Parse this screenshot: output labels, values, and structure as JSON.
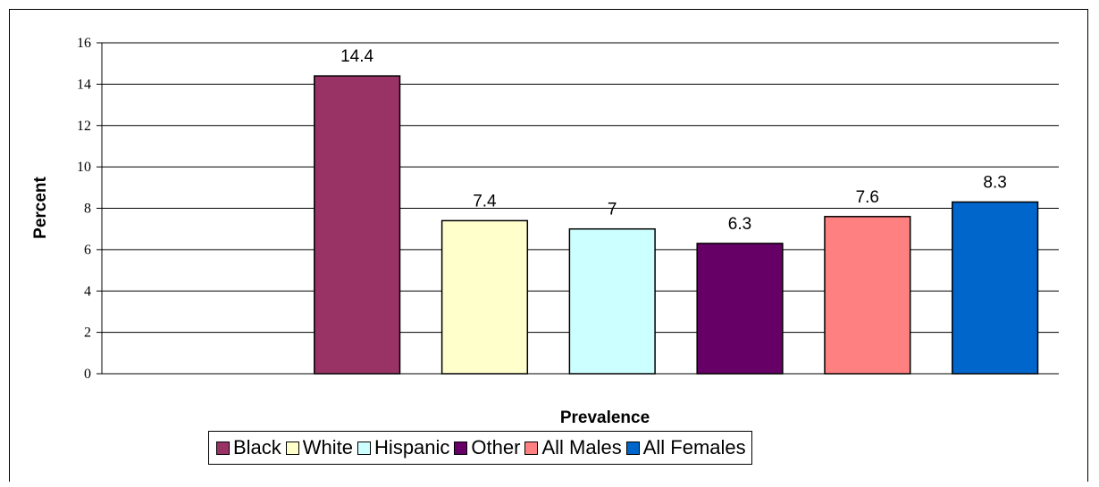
{
  "chart_data": {
    "type": "bar",
    "categories": [
      "Black",
      "White",
      "Hispanic",
      "Other",
      "All Males",
      "All Females"
    ],
    "values": [
      14.4,
      7.4,
      7,
      6.3,
      7.6,
      8.3
    ],
    "value_labels": [
      "14.4",
      "7.4",
      "7",
      "6.3",
      "7.6",
      "8.3"
    ],
    "colors": [
      "#993366",
      "#FFFFCC",
      "#CCFFFF",
      "#660066",
      "#FF8080",
      "#0066CC"
    ],
    "xlabel": "Prevalence",
    "ylabel": "Percent",
    "ylim": [
      0,
      16
    ],
    "y_ticks": [
      "0",
      "2",
      "4",
      "6",
      "8",
      "10",
      "12",
      "14",
      "16"
    ],
    "grid": true,
    "legend_position": "bottom"
  }
}
